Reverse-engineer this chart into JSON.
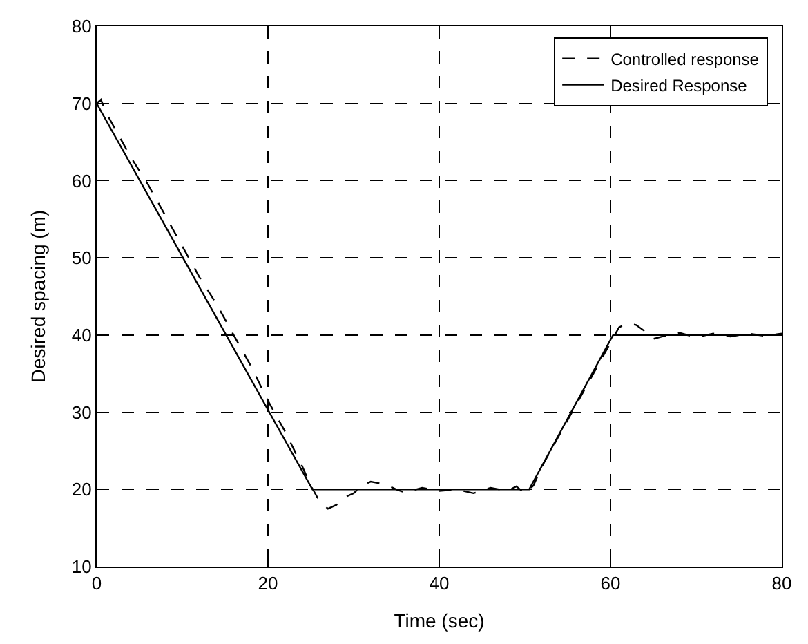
{
  "chart_data": {
    "type": "line",
    "xlabel": "Time (sec)",
    "ylabel": "Desired spacing (m)",
    "xlim": [
      0,
      80
    ],
    "ylim": [
      10,
      80
    ],
    "xticks": [
      0,
      20,
      40,
      60,
      80
    ],
    "yticks": [
      10,
      20,
      30,
      40,
      50,
      60,
      70,
      80
    ],
    "grid": true,
    "legend": "top right",
    "marker": "none",
    "series": [
      {
        "name": "Controlled response",
        "color": "#000000",
        "line_style": "dashed",
        "x": [
          0,
          0.5,
          1,
          2,
          4,
          6,
          8,
          10,
          12,
          14,
          16,
          18,
          20,
          22,
          24,
          25,
          26,
          27,
          28,
          29,
          30,
          31,
          32,
          33,
          34,
          35,
          36,
          38,
          40,
          42,
          44,
          46,
          48,
          49,
          50,
          51,
          52,
          54,
          56,
          58,
          60,
          61,
          62,
          63,
          64,
          65,
          66,
          68,
          70,
          72,
          74,
          76,
          78,
          80
        ],
        "values": [
          70,
          70.5,
          69,
          67,
          63,
          59.5,
          55.5,
          51.5,
          47.5,
          44,
          40,
          36,
          31.5,
          27.5,
          23,
          20.5,
          18.5,
          17.5,
          18,
          19,
          19.5,
          20.5,
          21,
          20.8,
          20.5,
          20,
          19.6,
          20.2,
          19.8,
          20,
          19.5,
          20.2,
          19.8,
          20.4,
          19.5,
          20.5,
          23,
          27,
          31,
          35,
          39,
          41,
          41.5,
          41.3,
          40.5,
          39.5,
          39.8,
          40.3,
          39.7,
          40.2,
          39.8,
          40.2,
          39.9,
          40.2
        ]
      },
      {
        "name": "Desired Response",
        "color": "#000000",
        "line_style": "solid",
        "x": [
          0,
          25.2,
          50.5,
          60.3,
          80
        ],
        "values": [
          70,
          20,
          20,
          40,
          40
        ]
      }
    ]
  }
}
